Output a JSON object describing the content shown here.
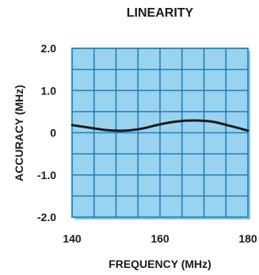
{
  "chart_data": {
    "type": "line",
    "title": "LINEARITY",
    "xlabel": "FREQUENCY (MHz)",
    "ylabel": "ACCURACY (MHz)",
    "xlim": [
      140,
      180
    ],
    "ylim": [
      -2.0,
      2.0
    ],
    "x_ticks": [
      "140",
      "160",
      "180"
    ],
    "y_ticks": [
      "2.0",
      "1.0",
      "0",
      "-1.0",
      "-2.0"
    ],
    "grid": true,
    "series": [
      {
        "x": [
          140,
          144,
          148,
          152,
          156,
          160,
          164,
          168,
          172,
          176,
          180
        ],
        "y": [
          0.18,
          0.12,
          0.06,
          0.05,
          0.1,
          0.2,
          0.27,
          0.29,
          0.26,
          0.16,
          0.05
        ]
      }
    ]
  },
  "colors": {
    "plot_fill": "#9ad3ef",
    "plot_border": "#2d8fc6",
    "grid": "#1f80bd",
    "line": "#1a1a1a"
  }
}
